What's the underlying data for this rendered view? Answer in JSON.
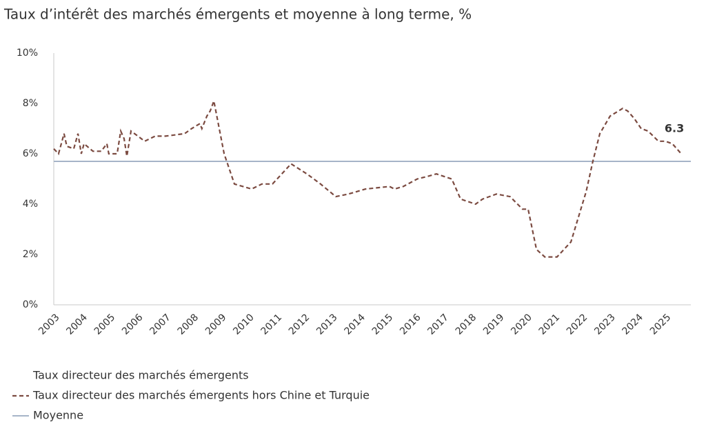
{
  "chart_data": {
    "type": "line",
    "title": "Taux d’intérêt des marchés émergents et moyenne à long terme, %",
    "xlim": [
      2003,
      2026
    ],
    "xticks": [
      2003,
      2004,
      2005,
      2006,
      2007,
      2008,
      2009,
      2010,
      2011,
      2012,
      2013,
      2014,
      2015,
      2016,
      2017,
      2018,
      2019,
      2020,
      2021,
      2022,
      2023,
      2024,
      2025
    ],
    "ylim": [
      0,
      10
    ],
    "yticks": [
      {
        "value": 0,
        "label": "0%"
      },
      {
        "value": 2,
        "label": "2%"
      },
      {
        "value": 4,
        "label": "4%"
      },
      {
        "value": 6,
        "label": "6%"
      },
      {
        "value": 8,
        "label": "8%"
      },
      {
        "value": 10,
        "label": "10%"
      }
    ],
    "legend_extra": [
      {
        "label": "Taux directeur des marchés émergents"
      }
    ],
    "series": [
      {
        "name": "Taux directeur des marchés émergents hors Chine et Turquie",
        "color": "#7b4a40",
        "dash": "dashed",
        "x": [
          2003.0,
          2003.17,
          2003.37,
          2003.47,
          2003.72,
          2003.87,
          2003.99,
          2004.09,
          2004.41,
          2004.71,
          2004.91,
          2004.98,
          2005.28,
          2005.41,
          2005.53,
          2005.63,
          2005.78,
          2006.03,
          2006.27,
          2006.65,
          2007.02,
          2007.71,
          2007.96,
          2008.26,
          2008.33,
          2008.51,
          2008.63,
          2008.76,
          2009.13,
          2009.5,
          2010.12,
          2010.49,
          2010.87,
          2011.54,
          2012.11,
          2012.6,
          2013.15,
          2013.6,
          2014.22,
          2015.08,
          2015.26,
          2015.58,
          2016.08,
          2016.45,
          2016.77,
          2017.32,
          2017.64,
          2018.18,
          2018.43,
          2018.93,
          2019.42,
          2019.87,
          2020.07,
          2020.37,
          2020.67,
          2021.11,
          2021.61,
          2022.16,
          2022.4,
          2022.65,
          2023.02,
          2023.47,
          2023.65,
          2023.89,
          2024.14,
          2024.39,
          2024.76,
          2025.01,
          2025.26,
          2025.58
        ],
        "values": [
          6.2,
          6.0,
          6.8,
          6.3,
          6.2,
          6.8,
          6.0,
          6.4,
          6.1,
          6.1,
          6.4,
          6.0,
          6.0,
          6.9,
          6.6,
          5.9,
          6.9,
          6.7,
          6.5,
          6.7,
          6.7,
          6.8,
          7.0,
          7.2,
          7.0,
          7.5,
          7.7,
          8.1,
          6.0,
          4.8,
          4.6,
          4.8,
          4.8,
          5.6,
          5.2,
          4.8,
          4.3,
          4.4,
          4.6,
          4.7,
          4.6,
          4.7,
          5.0,
          5.1,
          5.2,
          5.0,
          4.2,
          4.0,
          4.2,
          4.4,
          4.3,
          3.8,
          3.8,
          2.2,
          1.9,
          1.9,
          2.5,
          4.5,
          5.7,
          6.8,
          7.5,
          7.8,
          7.7,
          7.4,
          7.0,
          6.9,
          6.5,
          6.5,
          6.4,
          6.0
        ]
      }
    ],
    "reference_lines": [
      {
        "name": "Moyenne",
        "value": 5.7,
        "color": "#a6b4c8"
      }
    ],
    "annotation": "6.3"
  }
}
